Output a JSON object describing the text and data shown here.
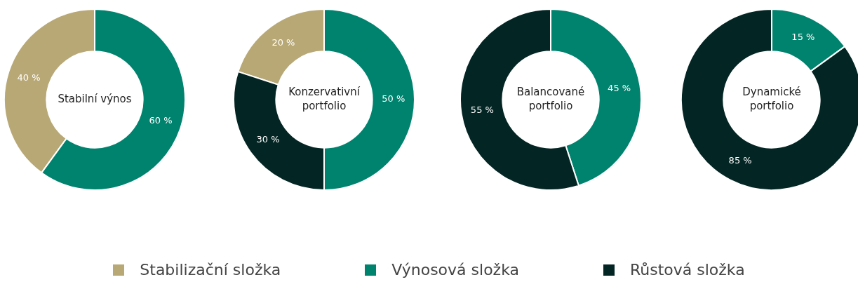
{
  "chart_data": [
    {
      "type": "donut",
      "title": "Stabilní výnos",
      "categories": [
        null,
        null
      ],
      "values": [
        40,
        60
      ],
      "value_labels": [
        "40 %",
        "60 %"
      ],
      "colors": [
        "#b8a876",
        "#00836e"
      ]
    },
    {
      "type": "donut",
      "title": "Konzervativní portfolio",
      "categories": [
        "Stabilizační složka",
        "Výnosová složka",
        "Růstová složka"
      ],
      "values": [
        20,
        50,
        30
      ],
      "value_labels": [
        "20 %",
        "50 %",
        "30 %"
      ],
      "colors": [
        "#b8a876",
        "#00836e",
        "#032523"
      ],
      "legend": "bottom"
    },
    {
      "type": "donut",
      "title": "Balancované portfolio",
      "categories": [
        null,
        null
      ],
      "values": [
        45,
        55
      ],
      "value_labels": [
        "45 %",
        "55 %"
      ],
      "colors": [
        "#00836e",
        "#032523"
      ]
    },
    {
      "type": "donut",
      "title": "Dynamické portfolio",
      "categories": [
        null,
        null
      ],
      "values": [
        15,
        85
      ],
      "value_labels": [
        "15 %",
        "85 %"
      ],
      "colors": [
        "#00836e",
        "#032523"
      ]
    }
  ]
}
